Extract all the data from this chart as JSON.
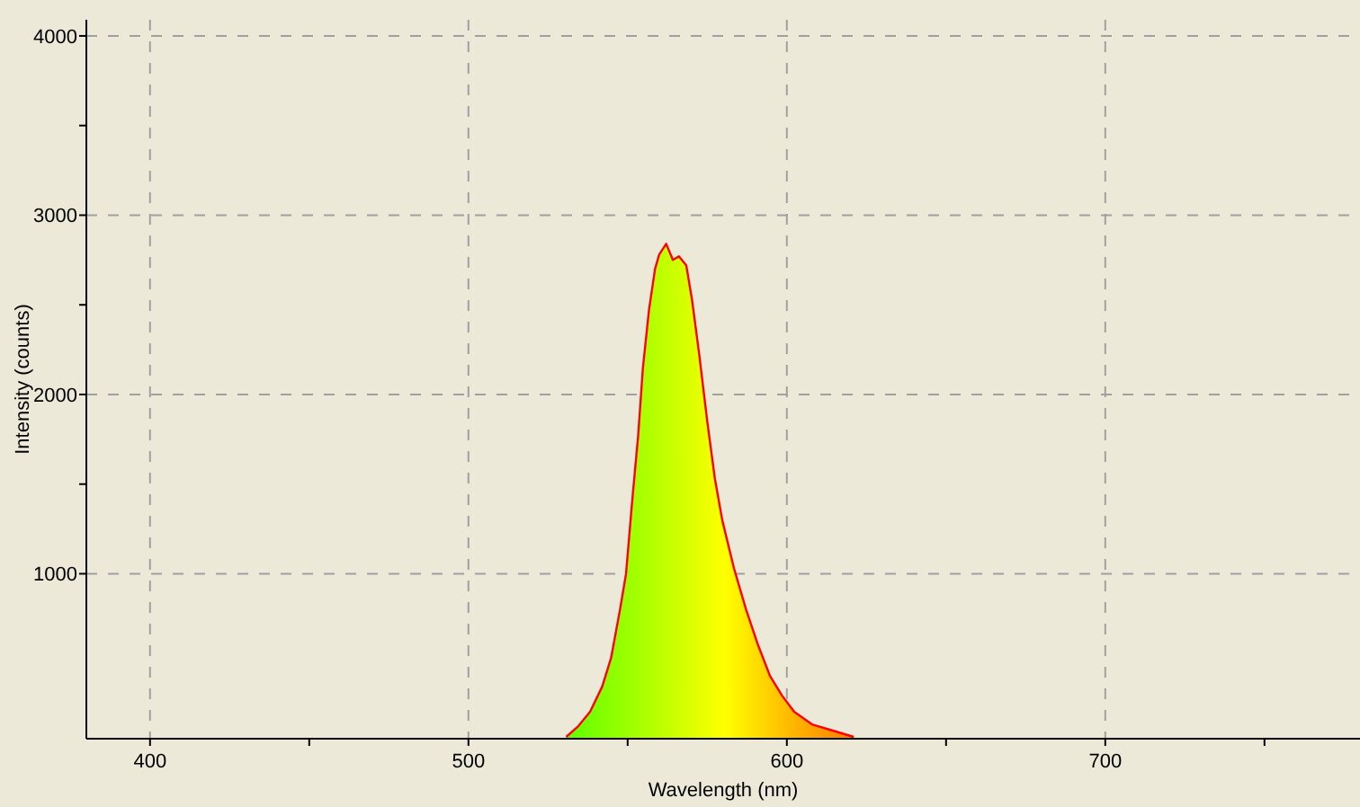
{
  "chart_data": {
    "type": "area",
    "xlabel": "Wavelength (nm)",
    "ylabel": "Intensity (counts)",
    "xlim": [
      380,
      780
    ],
    "ylim": [
      80,
      4090
    ],
    "xticks": [
      400,
      {
        "value": 450,
        "label": null
      },
      500,
      {
        "value": 550,
        "label": null
      },
      600,
      {
        "value": 650,
        "label": null
      },
      700,
      {
        "value": 750,
        "label": null
      }
    ],
    "yticks": [
      1000,
      {
        "value": 1500,
        "label": null
      },
      2000,
      {
        "value": 2500,
        "label": null
      },
      3000,
      {
        "value": 3500,
        "label": null
      },
      4000
    ],
    "grid": true,
    "line_style": "solid",
    "series": [
      {
        "color": "#ff0000",
        "x": [
          530.7,
          534.5,
          538.2,
          542,
          544.8,
          547.6,
          549.5,
          551.4,
          553.3,
          554.8,
          556.7,
          558.6,
          559.9,
          562.1,
          564.2,
          566.1,
          568.4,
          570.2,
          572.5,
          575,
          577.4,
          579.7,
          583.4,
          587.2,
          591,
          594.7,
          598.5,
          602.3,
          607.9,
          615.4,
          621
        ],
        "values": [
          90,
          150,
          230,
          370,
          530,
          800,
          1000,
          1400,
          1770,
          2150,
          2470,
          2700,
          2780,
          2840,
          2750,
          2770,
          2720,
          2530,
          2220,
          1850,
          1530,
          1300,
          1030,
          800,
          600,
          430,
          320,
          230,
          160,
          120,
          90
        ]
      }
    ]
  }
}
